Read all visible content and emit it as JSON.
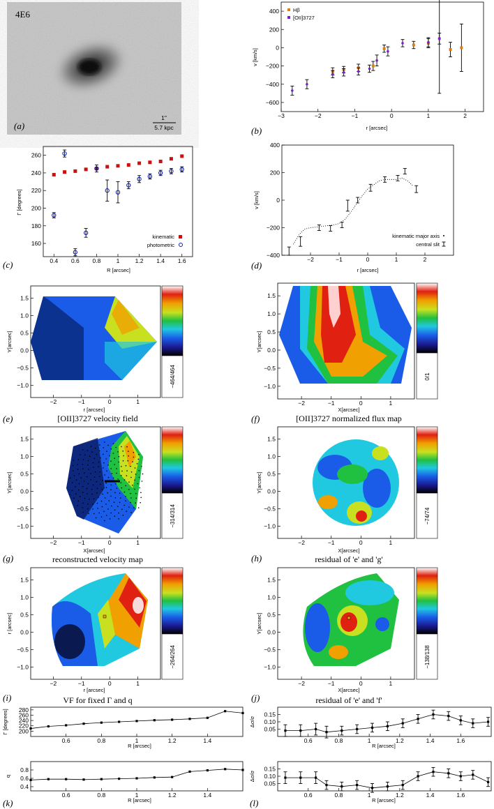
{
  "panels": {
    "a": {
      "label": "(a)",
      "galaxy_id": "4E6",
      "scale_top": "1\"",
      "scale_bottom": "5.7 kpc"
    },
    "b": {
      "label": "(b)",
      "xlabel": "r [arcsec]",
      "ylabel": "v [km/s]",
      "xlim": [
        -3,
        2.5
      ],
      "ylim": [
        -700,
        500
      ],
      "xticks": [
        -3,
        -2,
        -1,
        0,
        1,
        2
      ],
      "yticks": [
        -600,
        -400,
        -200,
        0,
        200,
        400
      ],
      "legend": [
        "Hβ",
        "[OII]3727"
      ],
      "colors": {
        "hb": "#e07b10",
        "oii": "#7a20c8"
      },
      "hb": [
        [
          -1.6,
          -260,
          40
        ],
        [
          -1.3,
          -240,
          35
        ],
        [
          -0.9,
          -220,
          40
        ],
        [
          -0.5,
          -200,
          50
        ],
        [
          -0.2,
          -10,
          40
        ],
        [
          0.6,
          30,
          40
        ],
        [
          1.0,
          50,
          50
        ],
        [
          1.3,
          100,
          600
        ],
        [
          1.6,
          -20,
          80
        ],
        [
          1.9,
          0,
          260
        ]
      ],
      "oii": [
        [
          -2.7,
          -470,
          50
        ],
        [
          -2.3,
          -400,
          50
        ],
        [
          -1.6,
          -290,
          40
        ],
        [
          -1.3,
          -270,
          40
        ],
        [
          -0.9,
          -260,
          40
        ],
        [
          -0.6,
          -230,
          40
        ],
        [
          -0.4,
          -140,
          60
        ],
        [
          -0.1,
          -40,
          50
        ],
        [
          0.3,
          50,
          40
        ],
        [
          1.0,
          60,
          50
        ],
        [
          1.3,
          100,
          60
        ]
      ]
    },
    "c": {
      "label": "(c)",
      "xlabel": "R [arcsec]",
      "ylabel": "Γ [degrees]",
      "xlim": [
        0.3,
        1.7
      ],
      "ylim": [
        145,
        270
      ],
      "xticks": [
        0.4,
        0.6,
        0.8,
        1.0,
        1.2,
        1.4,
        1.6
      ],
      "yticks": [
        160,
        180,
        200,
        220,
        240,
        260
      ],
      "legend": [
        "kinematic",
        "photometric"
      ],
      "colors": {
        "kin": "#cc1010",
        "phot": "#1020b0"
      },
      "kinematic": [
        [
          0.4,
          238
        ],
        [
          0.5,
          241
        ],
        [
          0.6,
          242
        ],
        [
          0.7,
          244
        ],
        [
          0.8,
          245
        ],
        [
          0.9,
          247
        ],
        [
          1.0,
          248
        ],
        [
          1.1,
          249
        ],
        [
          1.2,
          251
        ],
        [
          1.3,
          252
        ],
        [
          1.4,
          253
        ],
        [
          1.5,
          256
        ],
        [
          1.6,
          259
        ]
      ],
      "photometric": [
        [
          0.4,
          192,
          3
        ],
        [
          0.5,
          262,
          4
        ],
        [
          0.6,
          150,
          4
        ],
        [
          0.7,
          172,
          5
        ],
        [
          0.8,
          245,
          4
        ],
        [
          0.9,
          220,
          12
        ],
        [
          1.0,
          218,
          12
        ],
        [
          1.1,
          226,
          4
        ],
        [
          1.2,
          233,
          4
        ],
        [
          1.3,
          236,
          3
        ],
        [
          1.4,
          240,
          3
        ],
        [
          1.5,
          242,
          3
        ],
        [
          1.6,
          244,
          3
        ]
      ]
    },
    "d": {
      "label": "(d)",
      "xlabel": "r [arcsec]",
      "ylabel": "v [km/s]",
      "xlim": [
        -3,
        3
      ],
      "ylim": [
        -400,
        400
      ],
      "xticks": [
        -2,
        -1,
        0,
        1,
        2
      ],
      "yticks": [
        -400,
        -200,
        0,
        200,
        400
      ],
      "legend": [
        "kinematic major axis",
        "central slit"
      ],
      "major_axis": [
        [
          -2.6,
          -320
        ],
        [
          -2.4,
          -250
        ],
        [
          -2.2,
          -210
        ],
        [
          -2.0,
          -200
        ],
        [
          -1.8,
          -195
        ],
        [
          -1.6,
          -190
        ],
        [
          -1.4,
          -185
        ],
        [
          -1.2,
          -180
        ],
        [
          -1.0,
          -170
        ],
        [
          -0.8,
          -140
        ],
        [
          -0.6,
          -90
        ],
        [
          -0.4,
          -30
        ],
        [
          -0.2,
          30
        ],
        [
          0.0,
          80
        ],
        [
          0.2,
          110
        ],
        [
          0.4,
          140
        ],
        [
          0.6,
          150
        ],
        [
          0.8,
          150
        ],
        [
          1.0,
          150
        ],
        [
          1.2,
          160
        ],
        [
          1.4,
          140
        ],
        [
          1.6,
          100
        ]
      ],
      "central_slit": [
        [
          -2.75,
          -370,
          30
        ],
        [
          -2.35,
          -300,
          35
        ],
        [
          -1.7,
          -200,
          20
        ],
        [
          -1.3,
          -205,
          20
        ],
        [
          -0.9,
          -180,
          20
        ],
        [
          -0.7,
          -40,
          40
        ],
        [
          -0.35,
          0,
          20
        ],
        [
          0.1,
          90,
          25
        ],
        [
          0.6,
          150,
          20
        ],
        [
          1.05,
          160,
          20
        ],
        [
          1.3,
          210,
          20
        ],
        [
          1.7,
          80,
          25
        ]
      ]
    },
    "e": {
      "label": "(e)",
      "xlabel": "r [arcsec]",
      "ylabel": "Y[arcsec]",
      "colorbar": "−464/464",
      "xticks": [
        -2,
        -1,
        0,
        1
      ],
      "yticks": [
        -1.0,
        -0.5,
        0.0,
        0.5,
        1.0,
        1.5
      ]
    },
    "f": {
      "label": "(f)",
      "xlabel": "X[arcsec]",
      "ylabel": "Y[arcsec]",
      "colorbar": "0/1",
      "title": "[OII]3727 normalized flux map",
      "xticks": [
        -2,
        -1,
        0,
        1
      ],
      "yticks": [
        -1.0,
        -0.5,
        0.0,
        0.5,
        1.0,
        1.5
      ]
    },
    "g": {
      "label": "(g)",
      "xlabel": "X[arcsec]",
      "ylabel": "Y[arcsec]",
      "colorbar": "−314/314",
      "title": "[OII]3727 velocity field",
      "xticks": [
        -2,
        -1,
        0,
        1
      ],
      "yticks": [
        -1.0,
        -0.5,
        0.0,
        0.5,
        1.0,
        1.5
      ]
    },
    "h": {
      "label": "(h)",
      "xlabel": "X[arcsec]",
      "ylabel": "Y[arcsec]",
      "colorbar": "−74/74",
      "title": "reconstructed velocity map",
      "xticks": [
        -2,
        -1,
        0,
        1
      ],
      "yticks": [
        -1.0,
        -0.5,
        0.0,
        0.5,
        1.0,
        1.5
      ]
    },
    "i": {
      "label": "(i)",
      "xlabel": "r [arcsec]",
      "ylabel": "r [arcsec]",
      "colorbar": "−264/264",
      "title": "residual of 'e' and 'g'",
      "xticks": [
        -2,
        -1,
        0,
        1
      ],
      "yticks": [
        -1.0,
        -0.5,
        0.0,
        0.5,
        1.0,
        1.5
      ]
    },
    "j": {
      "label": "(j)",
      "xlabel": "X[arcsec]",
      "ylabel": "Y[arcsec]",
      "colorbar": "−138/138",
      "title": "VF for fixed Γ and q",
      "xticks": [
        -2,
        -1,
        0,
        1
      ],
      "yticks": [
        -1.0,
        -0.5,
        0.0,
        0.5,
        1.0,
        1.5
      ]
    },
    "k1": {
      "title": "residual of 'e' and 'f'",
      "xlabel": "R [arcsec]",
      "ylabel": "Γ [degrees]",
      "xlim": [
        0.4,
        1.6
      ],
      "ylim": [
        180,
        290
      ],
      "yticks": [
        200,
        220,
        240,
        260,
        280
      ],
      "xticks": [
        0.6,
        0.8,
        1.0,
        1.2,
        1.4
      ],
      "values": [
        [
          0.4,
          210
        ],
        [
          0.5,
          218
        ],
        [
          0.6,
          222
        ],
        [
          0.7,
          228
        ],
        [
          0.8,
          232
        ],
        [
          0.9,
          235
        ],
        [
          1.0,
          238
        ],
        [
          1.1,
          241
        ],
        [
          1.2,
          243
        ],
        [
          1.3,
          246
        ],
        [
          1.4,
          250
        ],
        [
          1.5,
          275
        ],
        [
          1.6,
          268
        ]
      ]
    },
    "k2": {
      "label": "(k)",
      "xlabel": "R [arcsec]",
      "ylabel": "q",
      "xlim": [
        0.4,
        1.6
      ],
      "ylim": [
        0.3,
        1.0
      ],
      "yticks": [
        0.4,
        0.6,
        0.8
      ],
      "xticks": [
        0.6,
        0.8,
        1.0,
        1.2,
        1.4
      ],
      "values": [
        [
          0.4,
          0.56
        ],
        [
          0.5,
          0.58
        ],
        [
          0.6,
          0.58
        ],
        [
          0.7,
          0.57
        ],
        [
          0.8,
          0.58
        ],
        [
          0.9,
          0.59
        ],
        [
          1.0,
          0.6
        ],
        [
          1.1,
          0.62
        ],
        [
          1.2,
          0.63
        ],
        [
          1.3,
          0.76
        ],
        [
          1.4,
          0.79
        ],
        [
          1.5,
          0.82
        ],
        [
          1.6,
          0.8
        ]
      ]
    },
    "l1": {
      "ylabel": "Δσ/σ",
      "xlabel": "R [arcsec]",
      "xlim": [
        0.4,
        1.8
      ],
      "ylim": [
        0.0,
        0.2
      ],
      "yticks": [
        0.05,
        0.1,
        0.15
      ],
      "xticks": [
        0.6,
        0.8,
        1.0,
        1.2,
        1.4,
        1.6
      ],
      "values": [
        [
          0.45,
          0.04,
          0.04
        ],
        [
          0.55,
          0.04,
          0.04
        ],
        [
          0.65,
          0.05,
          0.04
        ],
        [
          0.72,
          0.03,
          0.04
        ],
        [
          0.82,
          0.04,
          0.03
        ],
        [
          0.92,
          0.05,
          0.03
        ],
        [
          1.02,
          0.06,
          0.03
        ],
        [
          1.12,
          0.07,
          0.03
        ],
        [
          1.22,
          0.09,
          0.03
        ],
        [
          1.32,
          0.12,
          0.03
        ],
        [
          1.42,
          0.15,
          0.03
        ],
        [
          1.52,
          0.14,
          0.03
        ],
        [
          1.6,
          0.11,
          0.03
        ],
        [
          1.68,
          0.09,
          0.03
        ],
        [
          1.78,
          0.1,
          0.03
        ]
      ]
    },
    "l2": {
      "label": "(l)",
      "ylabel": "Δσ/σ",
      "xlabel": "R [arcsec]",
      "xlim": [
        0.4,
        1.8
      ],
      "ylim": [
        0.0,
        0.2
      ],
      "yticks": [
        0.05,
        0.1,
        0.15
      ],
      "xticks": [
        0.6,
        0.8,
        1.0,
        1.2,
        1.4,
        1.6
      ],
      "values": [
        [
          0.45,
          0.09,
          0.04
        ],
        [
          0.55,
          0.09,
          0.04
        ],
        [
          0.65,
          0.09,
          0.04
        ],
        [
          0.72,
          0.04,
          0.03
        ],
        [
          0.82,
          0.03,
          0.03
        ],
        [
          0.92,
          0.04,
          0.03
        ],
        [
          1.02,
          0.02,
          0.03
        ],
        [
          1.12,
          0.03,
          0.03
        ],
        [
          1.22,
          0.04,
          0.03
        ],
        [
          1.32,
          0.1,
          0.03
        ],
        [
          1.42,
          0.13,
          0.03
        ],
        [
          1.52,
          0.12,
          0.03
        ],
        [
          1.6,
          0.1,
          0.03
        ],
        [
          1.68,
          0.11,
          0.03
        ],
        [
          1.78,
          0.06,
          0.03
        ]
      ]
    }
  },
  "chart_data": [
    {
      "type": "scatter",
      "panel": "b",
      "xlabel": "r [arcsec]",
      "ylabel": "v [km/s]",
      "series": [
        "Hβ",
        "[OII]3727"
      ]
    },
    {
      "type": "scatter",
      "panel": "c",
      "xlabel": "R [arcsec]",
      "ylabel": "Γ [degrees]",
      "series": [
        "kinematic",
        "photometric"
      ]
    },
    {
      "type": "line",
      "panel": "d",
      "xlabel": "r [arcsec]",
      "ylabel": "v [km/s]",
      "series": [
        "kinematic major axis",
        "central slit"
      ]
    },
    {
      "type": "heatmap",
      "panels": [
        "e",
        "f",
        "g",
        "h",
        "i",
        "j"
      ]
    },
    {
      "type": "line",
      "panels": [
        "k1",
        "k2",
        "l1",
        "l2"
      ]
    }
  ]
}
